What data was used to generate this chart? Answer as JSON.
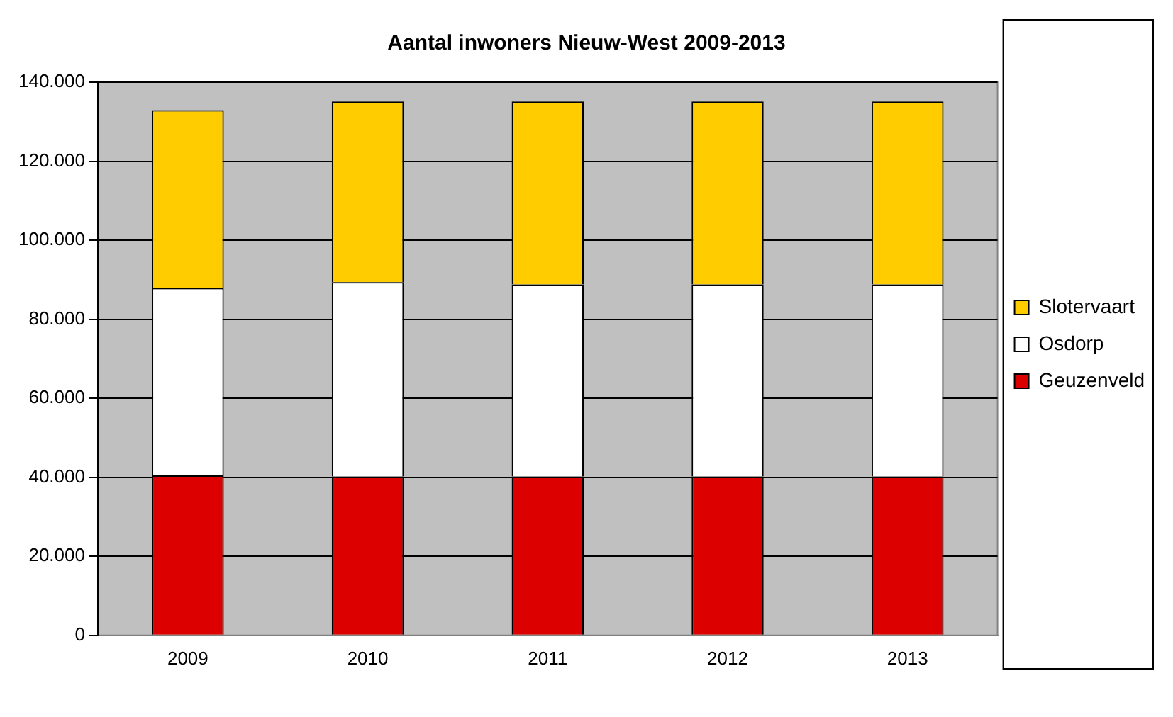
{
  "chart_data": {
    "type": "bar",
    "title": "Aantal inwoners Nieuw-West 2009-2013",
    "categories": [
      "2009",
      "2010",
      "2011",
      "2012",
      "2013"
    ],
    "stacked": true,
    "series": [
      {
        "name": "Geuzenveld",
        "color": "#dd0000",
        "values": [
          40500,
          40200,
          40200,
          40200,
          40200
        ]
      },
      {
        "name": "Osdorp",
        "color": "#ffffff",
        "values": [
          47400,
          49200,
          48600,
          48600,
          48600
        ]
      },
      {
        "name": "Slotervaart",
        "color": "#ffcc00",
        "values": [
          45000,
          45700,
          46300,
          46300,
          46300
        ]
      }
    ],
    "ylim": [
      0,
      140000
    ],
    "yticks": [
      {
        "value": 0,
        "label": "0"
      },
      {
        "value": 20000,
        "label": "20.000"
      },
      {
        "value": 40000,
        "label": "40.000"
      },
      {
        "value": 60000,
        "label": "60.000"
      },
      {
        "value": 80000,
        "label": "80.000"
      },
      {
        "value": 100000,
        "label": "100.000"
      },
      {
        "value": 120000,
        "label": "120.000"
      },
      {
        "value": 140000,
        "label": "140.000"
      }
    ],
    "grid": "y",
    "legend": "right"
  }
}
